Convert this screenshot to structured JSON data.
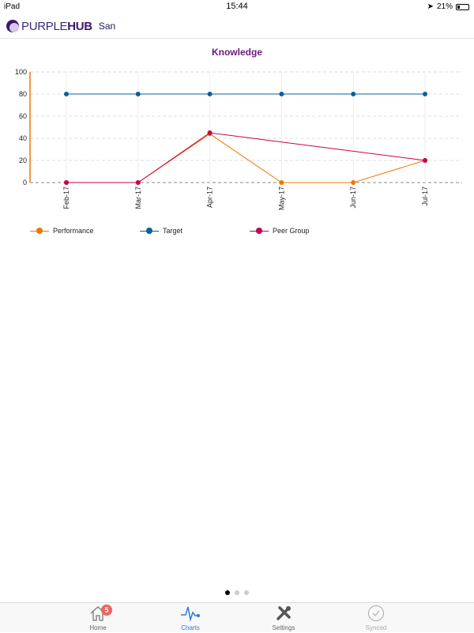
{
  "status": {
    "device": "iPad",
    "time": "15:44",
    "battery": "21%",
    "battery_level": 0.21
  },
  "header": {
    "brand_light": "PURPLE",
    "brand_bold": "HUB",
    "user": "San"
  },
  "chart_data": {
    "type": "line",
    "title": "Knowledge",
    "categories": [
      "Feb-17",
      "Mar-17",
      "Apr-17",
      "May-17",
      "Jun-17",
      "Jul-17"
    ],
    "ylim": [
      0,
      100
    ],
    "yticks": [
      0,
      20,
      40,
      60,
      80,
      100
    ],
    "grid": true,
    "legend_position": "bottom-left",
    "series": [
      {
        "name": "Performance",
        "color": "#f07800",
        "values": [
          0,
          0,
          44,
          0,
          0,
          20
        ]
      },
      {
        "name": "Target",
        "color": "#0a5fa0",
        "values": [
          80,
          80,
          80,
          80,
          80,
          80
        ]
      },
      {
        "name": "Peer Group",
        "color": "#c8004f",
        "values": [
          0,
          0,
          45,
          null,
          null,
          20
        ]
      }
    ]
  },
  "pager": {
    "pages": 3,
    "current": 0
  },
  "tabs": [
    {
      "label": "Home",
      "badge": "5"
    },
    {
      "label": "Charts"
    },
    {
      "label": "Settings"
    },
    {
      "label": "Synced"
    }
  ]
}
